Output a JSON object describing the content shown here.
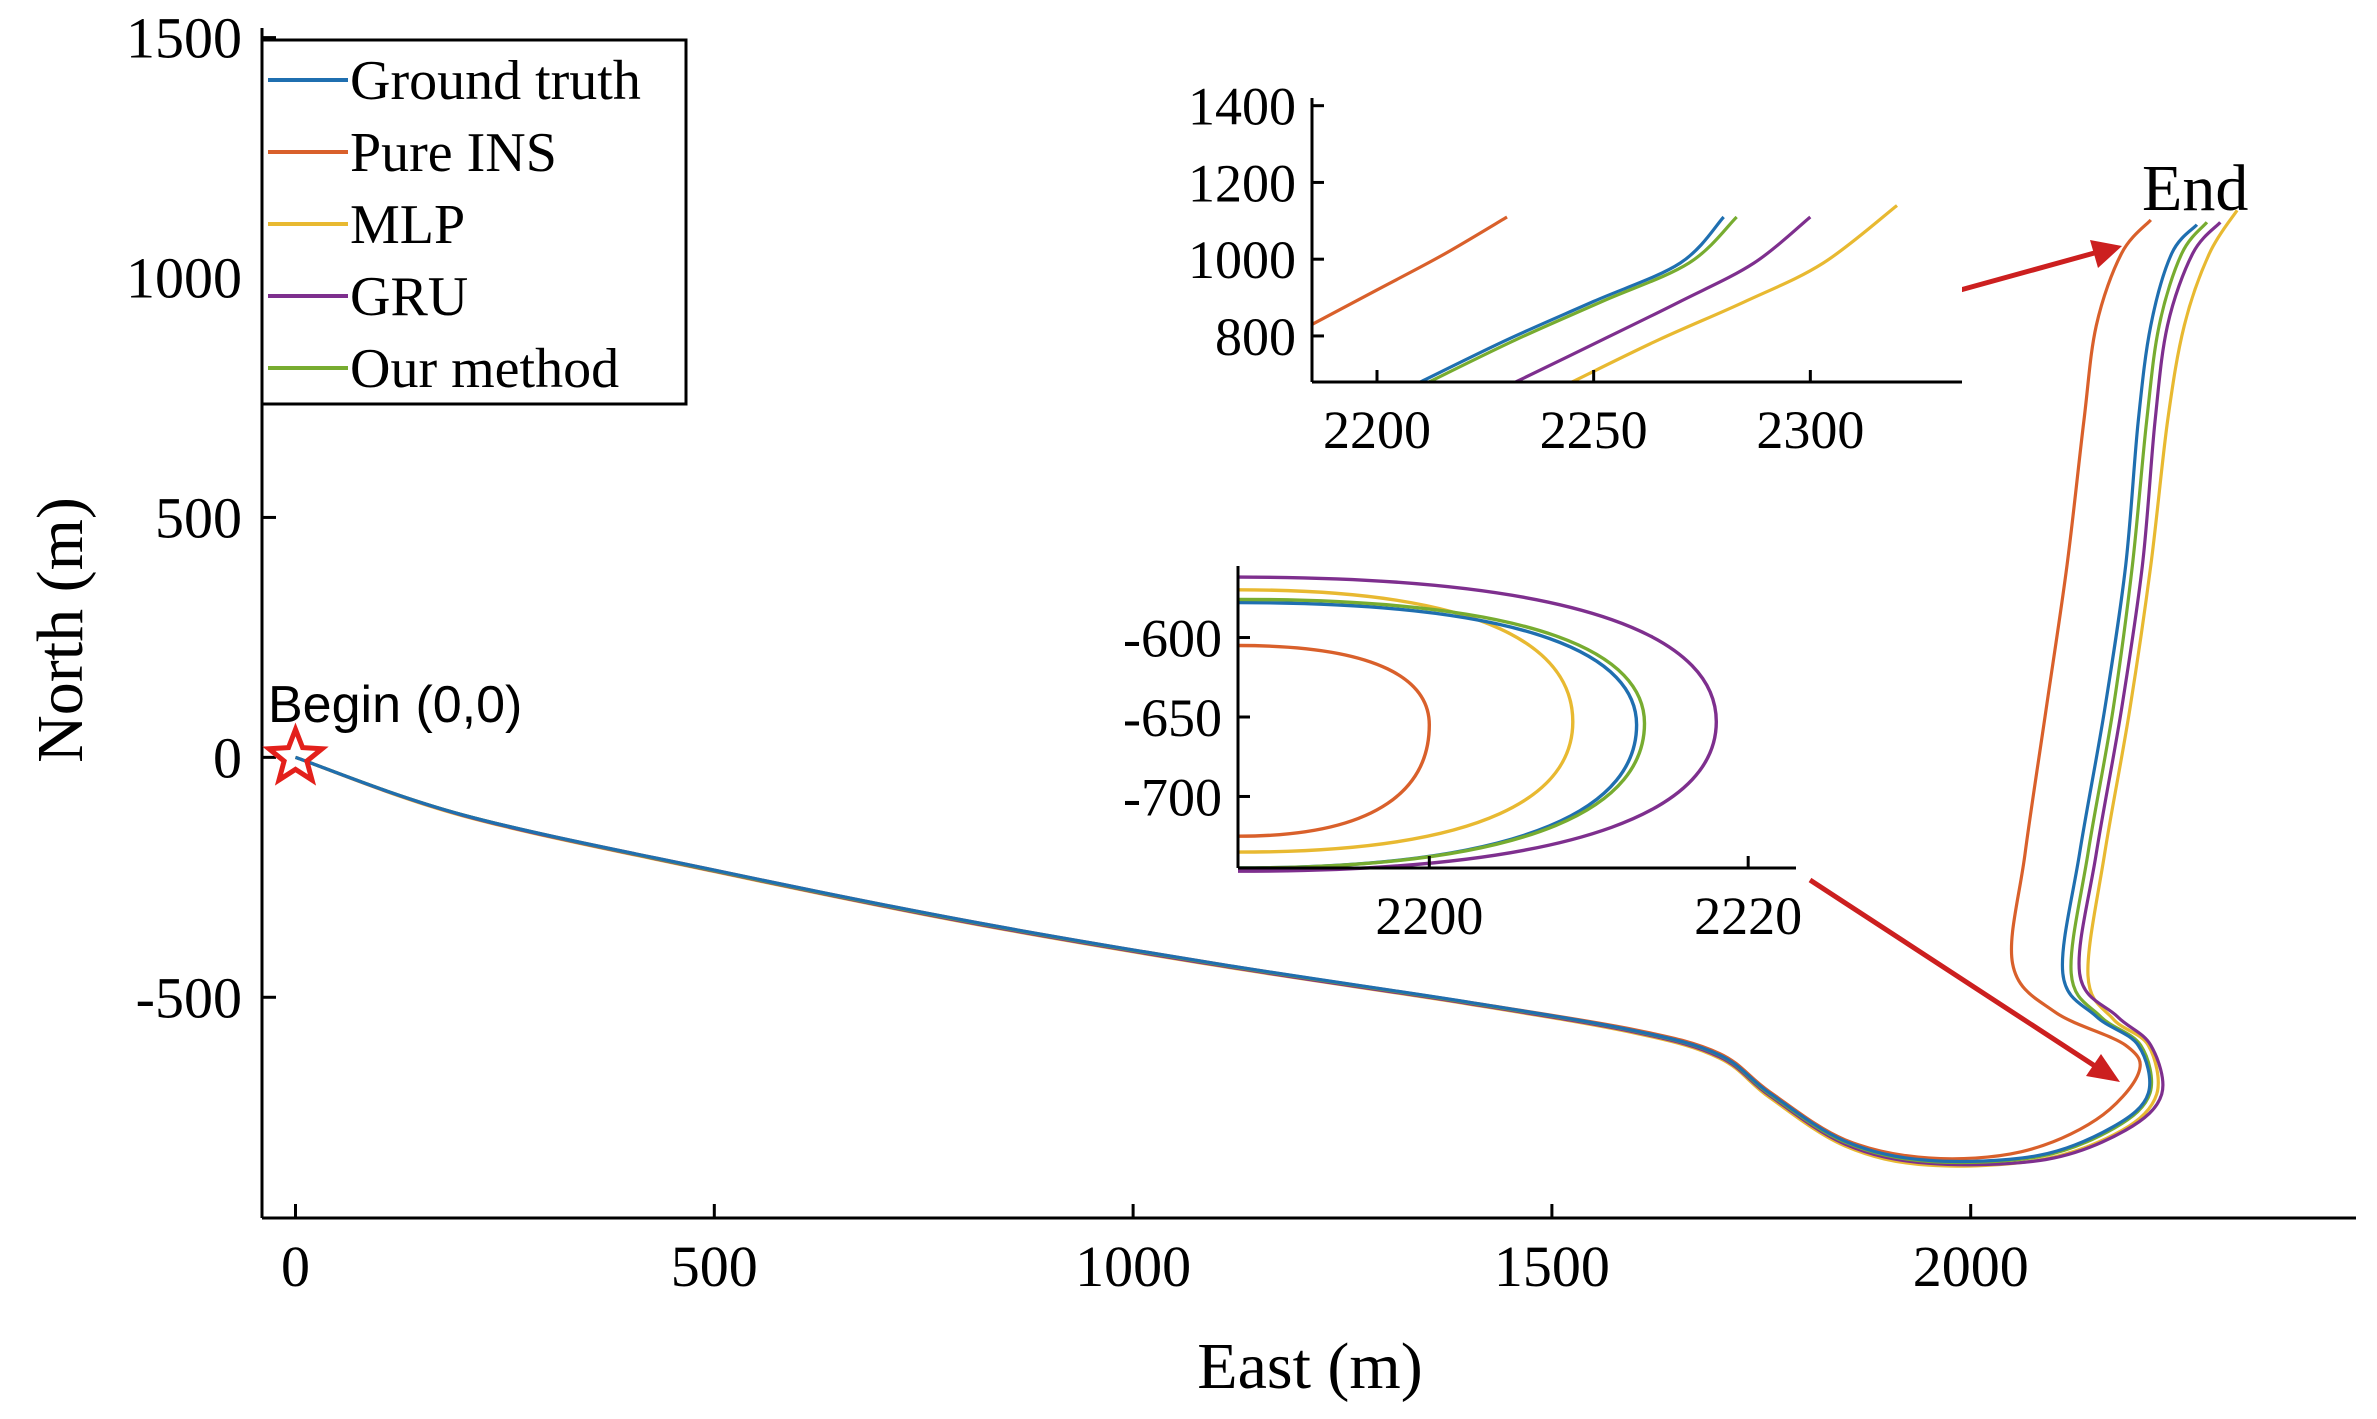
{
  "chart_data": {
    "type": "line",
    "xlabel": "East (m)",
    "ylabel": "North (m)",
    "xlim": [
      -40,
      2460
    ],
    "ylim": [
      -960,
      1520
    ],
    "xticks": [
      0,
      500,
      1000,
      1500,
      2000
    ],
    "yticks": [
      -500,
      0,
      500,
      1000,
      1500
    ],
    "grid": false,
    "legend": {
      "position": "top-left",
      "entries": [
        "Ground truth",
        "Pure INS",
        "MLP",
        "GRU",
        "Our method"
      ]
    },
    "series": [
      {
        "name": "Ground truth",
        "color": "#1f6fb0",
        "points": [
          [
            0,
            0
          ],
          [
            200,
            -120
          ],
          [
            500,
            -235
          ],
          [
            800,
            -340
          ],
          [
            1100,
            -430
          ],
          [
            1400,
            -510
          ],
          [
            1600,
            -570
          ],
          [
            1700,
            -620
          ],
          [
            1760,
            -700
          ],
          [
            1850,
            -800
          ],
          [
            1950,
            -840
          ],
          [
            2080,
            -830
          ],
          [
            2170,
            -770
          ],
          [
            2212,
            -700
          ],
          [
            2200,
            -600
          ],
          [
            2150,
            -540
          ],
          [
            2110,
            -450
          ],
          [
            2130,
            -200
          ],
          [
            2160,
            100
          ],
          [
            2185,
            400
          ],
          [
            2200,
            700
          ],
          [
            2215,
            900
          ],
          [
            2240,
            1050
          ],
          [
            2270,
            1110
          ]
        ]
      },
      {
        "name": "Pure INS",
        "color": "#d9602b",
        "points": [
          [
            0,
            0
          ],
          [
            200,
            -120
          ],
          [
            500,
            -235
          ],
          [
            800,
            -340
          ],
          [
            1100,
            -430
          ],
          [
            1400,
            -510
          ],
          [
            1600,
            -568
          ],
          [
            1700,
            -617
          ],
          [
            1760,
            -697
          ],
          [
            1850,
            -797
          ],
          [
            1950,
            -835
          ],
          [
            2060,
            -822
          ],
          [
            2150,
            -755
          ],
          [
            2200,
            -660
          ],
          [
            2185,
            -600
          ],
          [
            2100,
            -530
          ],
          [
            2050,
            -430
          ],
          [
            2065,
            -200
          ],
          [
            2090,
            100
          ],
          [
            2115,
            400
          ],
          [
            2135,
            700
          ],
          [
            2150,
            900
          ],
          [
            2180,
            1050
          ],
          [
            2215,
            1120
          ]
        ]
      },
      {
        "name": "MLP",
        "color": "#e8b931",
        "points": [
          [
            0,
            0
          ],
          [
            200,
            -122
          ],
          [
            500,
            -238
          ],
          [
            800,
            -344
          ],
          [
            1100,
            -434
          ],
          [
            1400,
            -514
          ],
          [
            1600,
            -575
          ],
          [
            1700,
            -627
          ],
          [
            1760,
            -709
          ],
          [
            1850,
            -810
          ],
          [
            1950,
            -850
          ],
          [
            2085,
            -838
          ],
          [
            2180,
            -778
          ],
          [
            2222,
            -702
          ],
          [
            2212,
            -600
          ],
          [
            2170,
            -545
          ],
          [
            2140,
            -455
          ],
          [
            2160,
            -200
          ],
          [
            2190,
            100
          ],
          [
            2215,
            400
          ],
          [
            2235,
            700
          ],
          [
            2255,
            900
          ],
          [
            2285,
            1050
          ],
          [
            2318,
            1140
          ]
        ]
      },
      {
        "name": "GRU",
        "color": "#7e2f8e",
        "points": [
          [
            0,
            0
          ],
          [
            200,
            -121
          ],
          [
            500,
            -237
          ],
          [
            800,
            -343
          ],
          [
            1100,
            -433
          ],
          [
            1400,
            -513
          ],
          [
            1600,
            -573
          ],
          [
            1700,
            -624
          ],
          [
            1760,
            -705
          ],
          [
            1850,
            -806
          ],
          [
            1950,
            -846
          ],
          [
            2090,
            -838
          ],
          [
            2185,
            -777
          ],
          [
            2228,
            -702
          ],
          [
            2215,
            -600
          ],
          [
            2175,
            -540
          ],
          [
            2130,
            -450
          ],
          [
            2150,
            -200
          ],
          [
            2180,
            100
          ],
          [
            2205,
            400
          ],
          [
            2220,
            700
          ],
          [
            2235,
            900
          ],
          [
            2265,
            1050
          ],
          [
            2298,
            1115
          ]
        ]
      },
      {
        "name": "Our method",
        "color": "#77ac30",
        "points": [
          [
            0,
            0
          ],
          [
            200,
            -120
          ],
          [
            500,
            -236
          ],
          [
            800,
            -341
          ],
          [
            1100,
            -431
          ],
          [
            1400,
            -511
          ],
          [
            1600,
            -571
          ],
          [
            1700,
            -621
          ],
          [
            1760,
            -702
          ],
          [
            1850,
            -802
          ],
          [
            1950,
            -842
          ],
          [
            2082,
            -832
          ],
          [
            2172,
            -772
          ],
          [
            2214,
            -700
          ],
          [
            2203,
            -600
          ],
          [
            2155,
            -540
          ],
          [
            2120,
            -450
          ],
          [
            2140,
            -200
          ],
          [
            2170,
            100
          ],
          [
            2193,
            400
          ],
          [
            2210,
            700
          ],
          [
            2225,
            900
          ],
          [
            2252,
            1050
          ],
          [
            2282,
            1115
          ]
        ]
      }
    ],
    "annotations": [
      {
        "text": "Begin (0,0)",
        "marker": "star",
        "x": 0,
        "y": 0
      },
      {
        "text": "End"
      }
    ],
    "insets": [
      {
        "name": "end-zoom",
        "xlim": [
          2185,
          2335
        ],
        "ylim": [
          680,
          1420
        ],
        "xticks": [
          2200,
          2250,
          2300
        ],
        "yticks": [
          800,
          1000,
          1200,
          1400
        ],
        "series": [
          {
            "name": "Pure INS",
            "points": [
              [
                2185,
                830
              ],
              [
                2200,
                920
              ],
              [
                2215,
                1010
              ],
              [
                2230,
                1110
              ]
            ]
          },
          {
            "name": "Ground truth",
            "points": [
              [
                2210,
                680
              ],
              [
                2230,
                790
              ],
              [
                2250,
                890
              ],
              [
                2270,
                990
              ],
              [
                2280,
                1110
              ]
            ]
          },
          {
            "name": "Our method",
            "points": [
              [
                2212,
                680
              ],
              [
                2232,
                790
              ],
              [
                2252,
                890
              ],
              [
                2272,
                990
              ],
              [
                2283,
                1110
              ]
            ]
          },
          {
            "name": "GRU",
            "points": [
              [
                2232,
                680
              ],
              [
                2252,
                790
              ],
              [
                2270,
                890
              ],
              [
                2287,
                990
              ],
              [
                2300,
                1110
              ]
            ]
          },
          {
            "name": "MLP",
            "points": [
              [
                2245,
                680
              ],
              [
                2265,
                790
              ],
              [
                2285,
                890
              ],
              [
                2303,
                990
              ],
              [
                2320,
                1140
              ]
            ]
          }
        ]
      },
      {
        "name": "turn-zoom",
        "xlim": [
          2188,
          2223
        ],
        "ylim": [
          -745,
          -555
        ],
        "xticks": [
          2200,
          2220
        ],
        "yticks": [
          -600,
          -650,
          -700
        ],
        "series": [
          {
            "name": "Pure INS",
            "vertex": [
              2200,
              -655
            ],
            "top": -605,
            "bottom": -725
          },
          {
            "name": "MLP",
            "vertex": [
              2209,
              -653
            ],
            "top": -570,
            "bottom": -735
          },
          {
            "name": "Ground truth",
            "vertex": [
              2213,
              -655
            ],
            "top": -578,
            "bottom": -745
          },
          {
            "name": "Our method",
            "vertex": [
              2213.5,
              -654
            ],
            "top": -576,
            "bottom": -745
          },
          {
            "name": "GRU",
            "vertex": [
              2218,
              -653
            ],
            "top": -562,
            "bottom": -747
          }
        ]
      }
    ]
  }
}
